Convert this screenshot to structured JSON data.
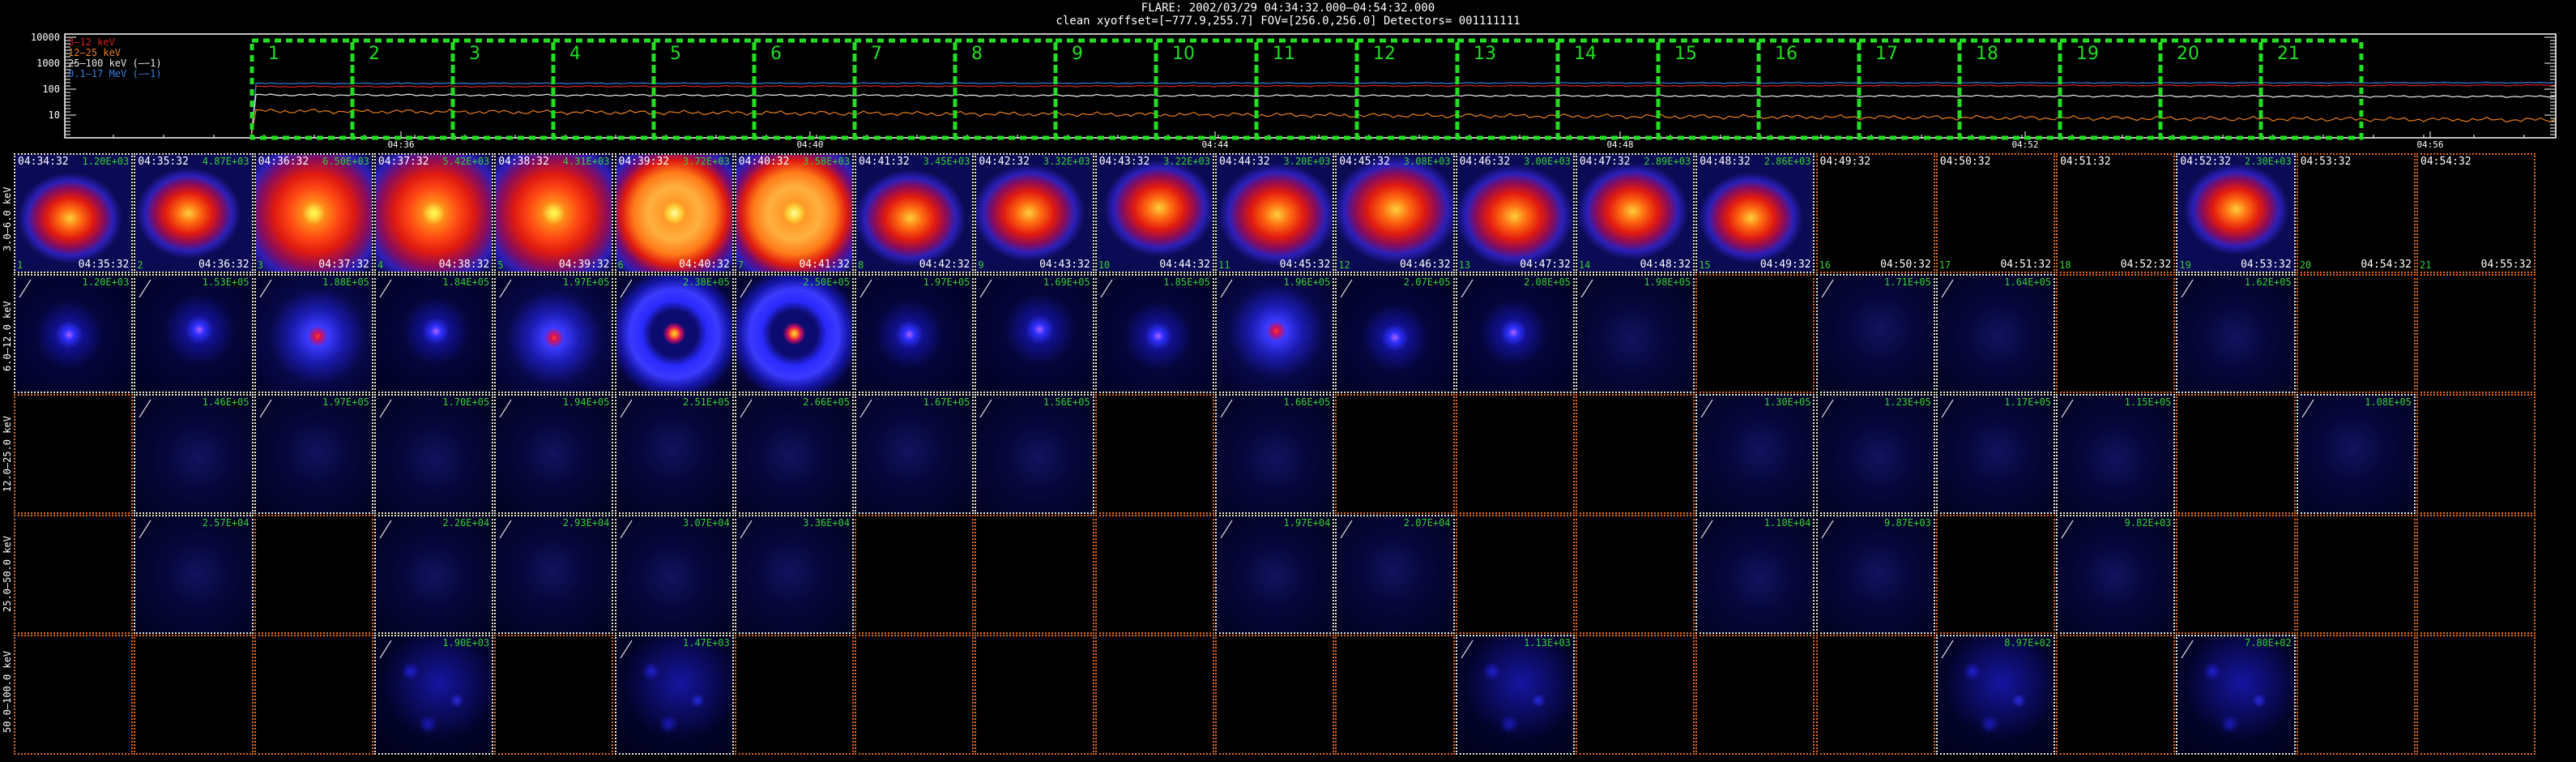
{
  "header": {
    "line1": "FLARE: 2002/03/29 04:34:32.000–04:54:32.000",
    "line2": "clean   xyoffset=[−777.9,255.7]   FOV=[256.0,256.0]   Detectors= 001111111"
  },
  "lightcurve": {
    "y_ticks": [
      "10000",
      "1000",
      "100",
      "10"
    ],
    "x_ticks": [
      "04:36",
      "04:40",
      "04:44",
      "04:48",
      "04:52",
      "04:56"
    ],
    "legend": [
      {
        "label": "3–12 keV",
        "color": "#d22020"
      },
      {
        "label": "12–25 keV",
        "color": "#e87d1e"
      },
      {
        "label": "25–100 keV (—−1)",
        "color": "#e8e8e8"
      },
      {
        "label": "0.1–17 MeV (—−1)",
        "color": "#3a7de0"
      }
    ],
    "intervals": [
      "1",
      "2",
      "3",
      "4",
      "5",
      "6",
      "7",
      "8",
      "9",
      "10",
      "11",
      "12",
      "13",
      "14",
      "15",
      "16",
      "17",
      "18",
      "19",
      "20",
      "21"
    ],
    "interval_color": "#22dd22"
  },
  "times": {
    "start": [
      "04:34:32",
      "04:35:32",
      "04:36:32",
      "04:37:32",
      "04:38:32",
      "04:39:32",
      "04:40:32",
      "04:41:32",
      "04:42:32",
      "04:43:32",
      "04:44:32",
      "04:45:32",
      "04:46:32",
      "04:47:32",
      "04:48:32",
      "04:49:32",
      "04:50:32",
      "04:51:32",
      "04:52:32",
      "04:53:32",
      "04:54:32"
    ],
    "end": [
      "04:35:32",
      "04:36:32",
      "04:37:32",
      "04:38:32",
      "04:39:32",
      "04:40:32",
      "04:41:32",
      "04:42:32",
      "04:43:32",
      "04:44:32",
      "04:45:32",
      "04:46:32",
      "04:47:32",
      "04:48:32",
      "04:49:32",
      "04:50:32",
      "04:51:32",
      "04:52:32",
      "04:53:32",
      "04:54:32",
      "04:55:32"
    ]
  },
  "rows": [
    {
      "label": "3.0–6.0 keV",
      "cells": [
        {
          "v": "1.20E+03",
          "k": "red",
          "s": 0.75,
          "b": 1
        },
        {
          "v": "4.87E+03",
          "k": "red",
          "s": 0.75,
          "b": 1
        },
        {
          "v": "6.50E+03",
          "k": "core",
          "s": 0.8,
          "b": 1
        },
        {
          "v": "5.42E+03",
          "k": "core",
          "s": 0.8,
          "b": 1
        },
        {
          "v": "4.31E+03",
          "k": "core",
          "s": 0.8,
          "b": 1
        },
        {
          "v": "3.72E+03",
          "k": "ring",
          "s": 0.9,
          "b": 1
        },
        {
          "v": "3.58E+03",
          "k": "ring",
          "s": 0.9,
          "b": 1
        },
        {
          "v": "3.45E+03",
          "k": "red",
          "s": 0.8,
          "b": 1
        },
        {
          "v": "3.32E+03",
          "k": "red",
          "s": 0.8,
          "b": 1
        },
        {
          "v": "3.22E+03",
          "k": "red",
          "s": 0.8,
          "b": 1
        },
        {
          "v": "3.20E+03",
          "k": "red",
          "s": 0.85,
          "b": 1
        },
        {
          "v": "3.08E+03",
          "k": "red",
          "s": 0.9,
          "b": 1
        },
        {
          "v": "3.00E+03",
          "k": "red",
          "s": 0.85,
          "b": 1
        },
        {
          "v": "2.89E+03",
          "k": "red",
          "s": 0.8,
          "b": 1
        },
        {
          "v": "2.86E+03",
          "k": "red",
          "s": 0.75,
          "b": 1
        },
        {
          "v": "",
          "k": "empty",
          "s": 0,
          "b": 0
        },
        {
          "v": "",
          "k": "empty",
          "s": 0,
          "b": 0
        },
        {
          "v": "",
          "k": "empty",
          "s": 0,
          "b": 0
        },
        {
          "v": "2.30E+03",
          "k": "red",
          "s": 0.75,
          "b": 1
        },
        {
          "v": "",
          "k": "empty",
          "s": 0,
          "b": 0
        },
        {
          "v": "",
          "k": "empty",
          "s": 0,
          "b": 0
        }
      ]
    },
    {
      "label": "6.0–12.0 keV",
      "cells": [
        {
          "v": "1.20E+03",
          "k": "dot",
          "s": 0.3,
          "b": 1
        },
        {
          "v": "1.53E+05",
          "k": "dot",
          "s": 0.35,
          "b": 1
        },
        {
          "v": "1.88E+05",
          "k": "blob",
          "s": 0.5,
          "b": 1
        },
        {
          "v": "1.84E+05",
          "k": "dot",
          "s": 0.35,
          "b": 1
        },
        {
          "v": "1.97E+05",
          "k": "blob",
          "s": 0.55,
          "b": 1
        },
        {
          "v": "2.38E+05",
          "k": "bring",
          "s": 0.85,
          "b": 1
        },
        {
          "v": "2.50E+05",
          "k": "bring",
          "s": 0.85,
          "b": 1
        },
        {
          "v": "1.97E+05",
          "k": "dot",
          "s": 0.4,
          "b": 1
        },
        {
          "v": "1.69E+05",
          "k": "dot",
          "s": 0.35,
          "b": 1
        },
        {
          "v": "1.85E+05",
          "k": "dot",
          "s": 0.3,
          "b": 1
        },
        {
          "v": "1.96E+05",
          "k": "blob",
          "s": 0.45,
          "b": 1
        },
        {
          "v": "2.07E+05",
          "k": "dot",
          "s": 0.4,
          "b": 1
        },
        {
          "v": "2.08E+05",
          "k": "dot",
          "s": 0.35,
          "b": 1
        },
        {
          "v": "1.98E+05",
          "k": "dim",
          "s": 0.3,
          "b": 1
        },
        {
          "v": "",
          "k": "empty",
          "s": 0,
          "b": 0
        },
        {
          "v": "1.71E+05",
          "k": "dim",
          "s": 0.3,
          "b": 1
        },
        {
          "v": "1.64E+05",
          "k": "dim",
          "s": 0.3,
          "b": 1
        },
        {
          "v": "",
          "k": "empty",
          "s": 0,
          "b": 0
        },
        {
          "v": "1.62E+05",
          "k": "dim",
          "s": 0.3,
          "b": 1
        },
        {
          "v": "",
          "k": "empty",
          "s": 0,
          "b": 0
        },
        {
          "v": "",
          "k": "empty",
          "s": 0,
          "b": 0
        }
      ]
    },
    {
      "label": "12.0–25.0 keV",
      "cells": [
        {
          "v": "",
          "k": "empty",
          "s": 0,
          "b": 0
        },
        {
          "v": "1.46E+05",
          "k": "dim",
          "s": 0.3,
          "b": 1
        },
        {
          "v": "1.97E+05",
          "k": "dim",
          "s": 0.3,
          "b": 1
        },
        {
          "v": "1.70E+05",
          "k": "dim",
          "s": 0.3,
          "b": 1
        },
        {
          "v": "1.94E+05",
          "k": "dim",
          "s": 0.3,
          "b": 1
        },
        {
          "v": "2.51E+05",
          "k": "dim",
          "s": 0.3,
          "b": 1
        },
        {
          "v": "2.66E+05",
          "k": "dim",
          "s": 0.3,
          "b": 1
        },
        {
          "v": "1.67E+05",
          "k": "dim",
          "s": 0.3,
          "b": 1
        },
        {
          "v": "1.56E+05",
          "k": "dim",
          "s": 0.3,
          "b": 1
        },
        {
          "v": "",
          "k": "empty",
          "s": 0,
          "b": 0
        },
        {
          "v": "1.66E+05",
          "k": "dim",
          "s": 0.3,
          "b": 1
        },
        {
          "v": "",
          "k": "empty",
          "s": 0,
          "b": 0
        },
        {
          "v": "",
          "k": "empty",
          "s": 0,
          "b": 0
        },
        {
          "v": "",
          "k": "empty",
          "s": 0,
          "b": 0
        },
        {
          "v": "1.30E+05",
          "k": "dim",
          "s": 0.3,
          "b": 1
        },
        {
          "v": "1.23E+05",
          "k": "dim",
          "s": 0.3,
          "b": 1
        },
        {
          "v": "1.17E+05",
          "k": "dim",
          "s": 0.3,
          "b": 1
        },
        {
          "v": "1.15E+05",
          "k": "dim",
          "s": 0.3,
          "b": 1
        },
        {
          "v": "",
          "k": "empty",
          "s": 0,
          "b": 0
        },
        {
          "v": "1.08E+05",
          "k": "dim",
          "s": 0.3,
          "b": 1
        },
        {
          "v": "",
          "k": "empty",
          "s": 0,
          "b": 0
        }
      ]
    },
    {
      "label": "25.0–50.0 keV",
      "cells": [
        {
          "v": "",
          "k": "empty",
          "s": 0,
          "b": 0
        },
        {
          "v": "2.57E+04",
          "k": "dim",
          "s": 0.3,
          "b": 1
        },
        {
          "v": "",
          "k": "empty",
          "s": 0,
          "b": 0
        },
        {
          "v": "2.26E+04",
          "k": "dim",
          "s": 0.3,
          "b": 1
        },
        {
          "v": "2.93E+04",
          "k": "dim",
          "s": 0.3,
          "b": 1
        },
        {
          "v": "3.07E+04",
          "k": "dim",
          "s": 0.3,
          "b": 1
        },
        {
          "v": "3.36E+04",
          "k": "dim",
          "s": 0.3,
          "b": 1
        },
        {
          "v": "",
          "k": "empty",
          "s": 0,
          "b": 0
        },
        {
          "v": "",
          "k": "empty",
          "s": 0,
          "b": 0
        },
        {
          "v": "",
          "k": "empty",
          "s": 0,
          "b": 0
        },
        {
          "v": "1.97E+04",
          "k": "dim",
          "s": 0.3,
          "b": 1
        },
        {
          "v": "2.07E+04",
          "k": "dim",
          "s": 0.3,
          "b": 1
        },
        {
          "v": "",
          "k": "empty",
          "s": 0,
          "b": 0
        },
        {
          "v": "",
          "k": "empty",
          "s": 0,
          "b": 0
        },
        {
          "v": "1.10E+04",
          "k": "dim",
          "s": 0.3,
          "b": 1
        },
        {
          "v": "9.87E+03",
          "k": "dim",
          "s": 0.3,
          "b": 1
        },
        {
          "v": "",
          "k": "empty",
          "s": 0,
          "b": 0
        },
        {
          "v": "9.82E+03",
          "k": "dim",
          "s": 0.3,
          "b": 1
        },
        {
          "v": "",
          "k": "empty",
          "s": 0,
          "b": 0
        },
        {
          "v": "",
          "k": "empty",
          "s": 0,
          "b": 0
        },
        {
          "v": "",
          "k": "empty",
          "s": 0,
          "b": 0
        }
      ]
    },
    {
      "label": "50.0–100.0 keV",
      "cells": [
        {
          "v": "",
          "k": "empty",
          "s": 0,
          "b": 0
        },
        {
          "v": "",
          "k": "empty",
          "s": 0,
          "b": 0
        },
        {
          "v": "",
          "k": "empty",
          "s": 0,
          "b": 0
        },
        {
          "v": "1.90E+03",
          "k": "noise",
          "s": 0.3,
          "b": 1
        },
        {
          "v": "",
          "k": "empty",
          "s": 0,
          "b": 0
        },
        {
          "v": "1.47E+03",
          "k": "noise",
          "s": 0.3,
          "b": 1
        },
        {
          "v": "",
          "k": "empty",
          "s": 0,
          "b": 0
        },
        {
          "v": "",
          "k": "empty",
          "s": 0,
          "b": 0
        },
        {
          "v": "",
          "k": "empty",
          "s": 0,
          "b": 0
        },
        {
          "v": "",
          "k": "empty",
          "s": 0,
          "b": 0
        },
        {
          "v": "",
          "k": "empty",
          "s": 0,
          "b": 0
        },
        {
          "v": "",
          "k": "empty",
          "s": 0,
          "b": 0
        },
        {
          "v": "1.13E+03",
          "k": "noise",
          "s": 0.3,
          "b": 1
        },
        {
          "v": "",
          "k": "empty",
          "s": 0,
          "b": 0
        },
        {
          "v": "",
          "k": "empty",
          "s": 0,
          "b": 0
        },
        {
          "v": "",
          "k": "empty",
          "s": 0,
          "b": 0
        },
        {
          "v": "8.97E+02",
          "k": "noise",
          "s": 0.3,
          "b": 1
        },
        {
          "v": "",
          "k": "empty",
          "s": 0,
          "b": 0
        },
        {
          "v": "7.80E+02",
          "k": "noise",
          "s": 0.3,
          "b": 1
        },
        {
          "v": "",
          "k": "empty",
          "s": 0,
          "b": 0
        },
        {
          "v": "",
          "k": "empty",
          "s": 0,
          "b": 0
        }
      ]
    }
  ]
}
